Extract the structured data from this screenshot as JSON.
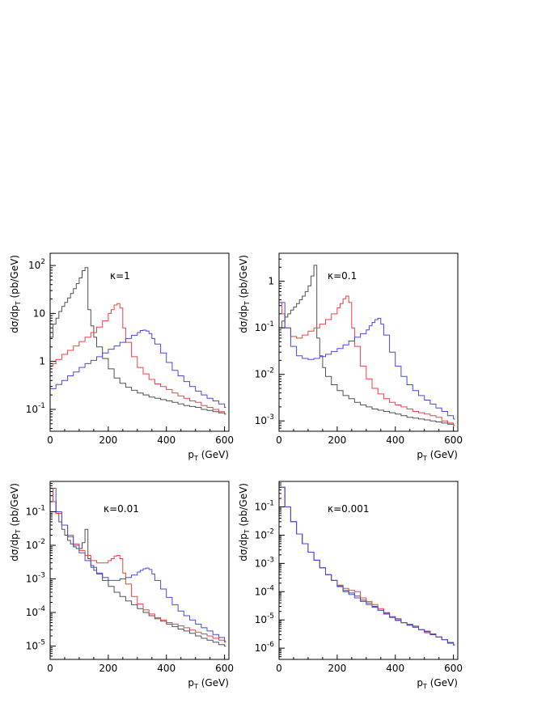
{
  "chart_data": [
    {
      "type": "line",
      "panel": "top-left",
      "annotation": "κ=1",
      "xlabel": "p_T (GeV)",
      "ylabel": "dσ/dp_T (pb/GeV)",
      "xlim": [
        0,
        615
      ],
      "ylim": [
        0.035,
        180
      ],
      "yscale": "log",
      "x_ticks": [
        0,
        200,
        400,
        600
      ],
      "x_tick_labels": [
        "0",
        "200",
        "400",
        "600"
      ],
      "y_ticks": [
        0.1,
        1,
        10,
        100
      ],
      "y_tick_labels": [
        {
          "base": "10",
          "exp": "-1"
        },
        {
          "base": "1",
          "exp": ""
        },
        {
          "base": "10",
          "exp": ""
        },
        {
          "base": "10",
          "exp": "2"
        }
      ],
      "series": [
        {
          "color": "#505050",
          "x": [
            0,
            10,
            20,
            30,
            40,
            50,
            60,
            70,
            80,
            90,
            100,
            110,
            120,
            130,
            140,
            150,
            160,
            180,
            200,
            220,
            240,
            260,
            280,
            300,
            320,
            340,
            360,
            380,
            400,
            420,
            440,
            460,
            480,
            500,
            520,
            540,
            560,
            580,
            600
          ],
          "y": [
            3.2,
            6.0,
            8.0,
            11,
            14,
            17,
            21,
            26,
            33,
            42,
            55,
            78,
            90,
            12,
            5.5,
            3.2,
            2.0,
            1.15,
            0.7,
            0.45,
            0.35,
            0.29,
            0.25,
            0.22,
            0.2,
            0.18,
            0.17,
            0.16,
            0.15,
            0.14,
            0.13,
            0.12,
            0.115,
            0.11,
            0.1,
            0.095,
            0.09,
            0.085,
            0.08
          ]
        },
        {
          "color": "#ee4040",
          "x": [
            0,
            10,
            20,
            40,
            60,
            80,
            100,
            120,
            140,
            160,
            180,
            200,
            210,
            220,
            230,
            240,
            250,
            260,
            280,
            300,
            320,
            340,
            360,
            380,
            400,
            420,
            440,
            460,
            480,
            500,
            520,
            540,
            560,
            580,
            600
          ],
          "y": [
            0.8,
            0.9,
            1.1,
            1.4,
            1.7,
            2.1,
            2.6,
            3.2,
            4.0,
            5.2,
            7.0,
            10,
            12,
            15,
            16,
            13,
            5,
            2.5,
            1.25,
            0.75,
            0.55,
            0.42,
            0.34,
            0.3,
            0.26,
            0.22,
            0.19,
            0.17,
            0.15,
            0.14,
            0.12,
            0.11,
            0.1,
            0.09,
            0.08
          ]
        },
        {
          "color": "#4848e0",
          "x": [
            0,
            20,
            40,
            60,
            80,
            100,
            120,
            140,
            160,
            180,
            200,
            220,
            240,
            260,
            280,
            300,
            310,
            320,
            330,
            340,
            350,
            360,
            380,
            400,
            420,
            440,
            460,
            480,
            500,
            520,
            540,
            560,
            580,
            600
          ],
          "y": [
            0.27,
            0.33,
            0.4,
            0.5,
            0.6,
            0.75,
            0.9,
            1.05,
            1.25,
            1.5,
            1.8,
            2.1,
            2.5,
            3.0,
            3.5,
            4.0,
            4.4,
            4.5,
            4.3,
            3.8,
            3.0,
            2.3,
            1.5,
            0.95,
            0.65,
            0.5,
            0.38,
            0.3,
            0.24,
            0.2,
            0.17,
            0.15,
            0.13,
            0.11
          ]
        }
      ]
    },
    {
      "type": "line",
      "panel": "top-right",
      "annotation": "κ=0.1",
      "xlabel": "p_T (GeV)",
      "ylabel": "dσ/dp_T (pb/GeV)",
      "xlim": [
        0,
        615
      ],
      "ylim": [
        0.0006,
        4.0
      ],
      "yscale": "log",
      "x_ticks": [
        0,
        200,
        400,
        600
      ],
      "x_tick_labels": [
        "0",
        "200",
        "400",
        "600"
      ],
      "y_ticks": [
        0.001,
        0.01,
        0.1,
        1
      ],
      "y_tick_labels": [
        {
          "base": "10",
          "exp": "-3"
        },
        {
          "base": "10",
          "exp": "-2"
        },
        {
          "base": "10",
          "exp": "-1"
        },
        {
          "base": "1",
          "exp": ""
        }
      ],
      "series": [
        {
          "color": "#505050",
          "x": [
            0,
            10,
            20,
            30,
            40,
            50,
            60,
            70,
            80,
            90,
            100,
            110,
            120,
            130,
            140,
            150,
            160,
            180,
            200,
            220,
            240,
            260,
            280,
            300,
            320,
            340,
            360,
            380,
            400,
            420,
            440,
            460,
            480,
            500,
            520,
            540,
            560,
            580,
            600
          ],
          "y": [
            0.1,
            0.14,
            0.17,
            0.2,
            0.24,
            0.28,
            0.33,
            0.4,
            0.48,
            0.6,
            0.8,
            1.3,
            2.2,
            0.06,
            0.025,
            0.014,
            0.009,
            0.006,
            0.0045,
            0.0035,
            0.003,
            0.0025,
            0.0022,
            0.002,
            0.0018,
            0.0017,
            0.0016,
            0.0015,
            0.0014,
            0.0013,
            0.0012,
            0.00115,
            0.0011,
            0.00105,
            0.001,
            0.00095,
            0.0009,
            0.00085,
            0.0008
          ]
        },
        {
          "color": "#ee4040",
          "x": [
            0,
            10,
            20,
            40,
            60,
            80,
            100,
            120,
            140,
            160,
            180,
            200,
            210,
            220,
            230,
            240,
            250,
            260,
            280,
            300,
            320,
            340,
            360,
            380,
            400,
            420,
            440,
            460,
            480,
            500,
            520,
            540,
            560,
            580,
            600
          ],
          "y": [
            0.35,
            0.2,
            0.1,
            0.065,
            0.06,
            0.07,
            0.085,
            0.1,
            0.12,
            0.15,
            0.2,
            0.27,
            0.33,
            0.42,
            0.48,
            0.35,
            0.1,
            0.04,
            0.015,
            0.008,
            0.005,
            0.0038,
            0.003,
            0.0025,
            0.0022,
            0.002,
            0.0018,
            0.0016,
            0.0015,
            0.0014,
            0.0013,
            0.0012,
            0.001,
            0.0009,
            0.0008
          ]
        },
        {
          "color": "#4848e0",
          "x": [
            0,
            20,
            40,
            60,
            80,
            100,
            120,
            140,
            160,
            180,
            200,
            220,
            240,
            260,
            280,
            300,
            310,
            320,
            330,
            340,
            350,
            360,
            380,
            400,
            420,
            440,
            460,
            480,
            500,
            520,
            540,
            560,
            580,
            600
          ],
          "y": [
            0.35,
            0.1,
            0.04,
            0.025,
            0.022,
            0.021,
            0.022,
            0.024,
            0.027,
            0.031,
            0.036,
            0.043,
            0.052,
            0.063,
            0.075,
            0.09,
            0.11,
            0.13,
            0.15,
            0.16,
            0.12,
            0.07,
            0.03,
            0.015,
            0.009,
            0.006,
            0.0045,
            0.0035,
            0.0028,
            0.0023,
            0.0019,
            0.0016,
            0.0013,
            0.0011
          ]
        }
      ]
    },
    {
      "type": "line",
      "panel": "bottom-left",
      "annotation": "κ=0.01",
      "xlabel": "p_T (GeV)",
      "ylabel": "dσ/dp_T (pb/GeV)",
      "xlim": [
        0,
        615
      ],
      "ylim": [
        4e-06,
        0.8
      ],
      "yscale": "log",
      "x_ticks": [
        0,
        200,
        400,
        600
      ],
      "x_tick_labels": [
        "0",
        "200",
        "400",
        "600"
      ],
      "y_ticks": [
        1e-05,
        0.0001,
        0.001,
        0.01,
        0.1
      ],
      "y_tick_labels": [
        {
          "base": "10",
          "exp": "-5"
        },
        {
          "base": "10",
          "exp": "-4"
        },
        {
          "base": "10",
          "exp": "-3"
        },
        {
          "base": "10",
          "exp": "-2"
        },
        {
          "base": "10",
          "exp": "-1"
        }
      ],
      "series": [
        {
          "color": "#505050",
          "x": [
            0,
            10,
            20,
            30,
            40,
            50,
            60,
            70,
            80,
            90,
            100,
            110,
            120,
            130,
            140,
            150,
            160,
            180,
            200,
            220,
            240,
            260,
            280,
            300,
            320,
            340,
            360,
            380,
            400,
            420,
            440,
            460,
            480,
            500,
            520,
            540,
            560,
            580,
            600
          ],
          "y": [
            0.5,
            0.2,
            0.09,
            0.05,
            0.03,
            0.02,
            0.014,
            0.011,
            0.009,
            0.008,
            0.008,
            0.012,
            0.03,
            0.004,
            0.0025,
            0.0018,
            0.0014,
            0.0009,
            0.0006,
            0.0004,
            0.0003,
            0.00022,
            0.00017,
            0.00013,
            0.0001,
            8e-05,
            6.5e-05,
            5.5e-05,
            4.5e-05,
            3.8e-05,
            3.2e-05,
            2.8e-05,
            2.4e-05,
            2e-05,
            1.7e-05,
            1.5e-05,
            1.3e-05,
            1.1e-05,
            1e-05
          ]
        },
        {
          "color": "#ee4040",
          "x": [
            0,
            10,
            20,
            40,
            60,
            80,
            100,
            120,
            140,
            160,
            180,
            200,
            210,
            220,
            230,
            240,
            250,
            260,
            280,
            300,
            320,
            340,
            360,
            380,
            400,
            420,
            440,
            460,
            480,
            500,
            520,
            540,
            560,
            580,
            600
          ],
          "y": [
            0.5,
            0.2,
            0.09,
            0.04,
            0.02,
            0.011,
            0.007,
            0.005,
            0.0035,
            0.003,
            0.003,
            0.0035,
            0.004,
            0.0048,
            0.005,
            0.004,
            0.0015,
            0.0007,
            0.0003,
            0.00018,
            0.00012,
            9e-05,
            7e-05,
            6e-05,
            5e-05,
            4.5e-05,
            4e-05,
            3.5e-05,
            3e-05,
            2.6e-05,
            2.3e-05,
            2e-05,
            1.7e-05,
            1.5e-05,
            1.3e-05
          ]
        },
        {
          "color": "#4848e0",
          "x": [
            0,
            20,
            40,
            60,
            80,
            100,
            120,
            140,
            160,
            180,
            200,
            220,
            240,
            260,
            280,
            300,
            310,
            320,
            330,
            340,
            350,
            360,
            380,
            400,
            420,
            440,
            460,
            480,
            500,
            520,
            540,
            560,
            580,
            600
          ],
          "y": [
            0.5,
            0.1,
            0.04,
            0.018,
            0.01,
            0.006,
            0.0035,
            0.0022,
            0.0015,
            0.0011,
            0.0009,
            0.0009,
            0.001,
            0.0011,
            0.0013,
            0.0016,
            0.0018,
            0.002,
            0.0021,
            0.0019,
            0.0014,
            0.0009,
            0.0005,
            0.00028,
            0.00017,
            0.00011,
            8e-05,
            6e-05,
            4.5e-05,
            3.5e-05,
            2.8e-05,
            2.2e-05,
            1.8e-05,
            1.4e-05
          ]
        }
      ]
    },
    {
      "type": "line",
      "panel": "bottom-right",
      "annotation": "κ=0.001",
      "xlabel": "p_T (GeV)",
      "ylabel": "dσ/dp_T (pb/GeV)",
      "xlim": [
        0,
        615
      ],
      "ylim": [
        4e-07,
        0.8
      ],
      "yscale": "log",
      "x_ticks": [
        0,
        200,
        400,
        600
      ],
      "x_tick_labels": [
        "0",
        "200",
        "400",
        "600"
      ],
      "y_ticks": [
        1e-06,
        1e-05,
        0.0001,
        0.001,
        0.01,
        0.1
      ],
      "y_tick_labels": [
        {
          "base": "10",
          "exp": "-6"
        },
        {
          "base": "10",
          "exp": "-5"
        },
        {
          "base": "10",
          "exp": "-4"
        },
        {
          "base": "10",
          "exp": "-3"
        },
        {
          "base": "10",
          "exp": "-2"
        },
        {
          "base": "10",
          "exp": "-1"
        }
      ],
      "series": [
        {
          "color": "#505050",
          "x": [
            0,
            20,
            40,
            60,
            80,
            100,
            120,
            140,
            160,
            180,
            200,
            220,
            240,
            260,
            280,
            300,
            320,
            340,
            360,
            380,
            400,
            420,
            440,
            460,
            480,
            500,
            520,
            540,
            560,
            580,
            600
          ],
          "y": [
            0.5,
            0.1,
            0.03,
            0.011,
            0.005,
            0.0025,
            0.0013,
            0.0007,
            0.0004,
            0.00025,
            0.00016,
            0.00011,
            9e-05,
            7e-05,
            5e-05,
            4e-05,
            3e-05,
            2.2e-05,
            1.8e-05,
            1.3e-05,
            1.1e-05,
            8e-06,
            7e-06,
            6e-06,
            4.5e-06,
            4e-06,
            3.2e-06,
            2.5e-06,
            2e-06,
            1.5e-06,
            1.3e-06
          ]
        },
        {
          "color": "#ee4040",
          "x": [
            0,
            20,
            40,
            60,
            80,
            100,
            120,
            140,
            160,
            180,
            200,
            220,
            240,
            260,
            280,
            300,
            320,
            340,
            360,
            380,
            400,
            420,
            440,
            460,
            480,
            500,
            520,
            540,
            560,
            580,
            600
          ],
          "y": [
            0.5,
            0.1,
            0.03,
            0.011,
            0.005,
            0.0025,
            0.0013,
            0.0007,
            0.0004,
            0.00025,
            0.00017,
            0.00013,
            0.00011,
            0.0001,
            6e-05,
            4.5e-05,
            3.5e-05,
            2.5e-05,
            1.6e-05,
            1.2e-05,
            9.5e-06,
            8e-06,
            6.5e-06,
            5.5e-06,
            4.5e-06,
            3.5e-06,
            3e-06,
            2.5e-06,
            2e-06,
            1.6e-06,
            1.3e-06
          ]
        },
        {
          "color": "#4848e0",
          "x": [
            0,
            20,
            40,
            60,
            80,
            100,
            120,
            140,
            160,
            180,
            200,
            220,
            240,
            260,
            280,
            300,
            320,
            340,
            360,
            380,
            400,
            420,
            440,
            460,
            480,
            500,
            520,
            540,
            560,
            580,
            600
          ],
          "y": [
            0.5,
            0.1,
            0.03,
            0.011,
            0.005,
            0.0025,
            0.0013,
            0.0007,
            0.0004,
            0.00025,
            0.00015,
            0.0001,
            8e-05,
            6e-05,
            4.5e-05,
            3.5e-05,
            2.8e-05,
            2.2e-05,
            1.7e-05,
            1.3e-05,
            1e-05,
            8e-06,
            6.5e-06,
            5.5e-06,
            4.5e-06,
            3.8e-06,
            3e-06,
            2.5e-06,
            2e-06,
            1.6e-06,
            1.3e-06
          ]
        }
      ]
    }
  ]
}
